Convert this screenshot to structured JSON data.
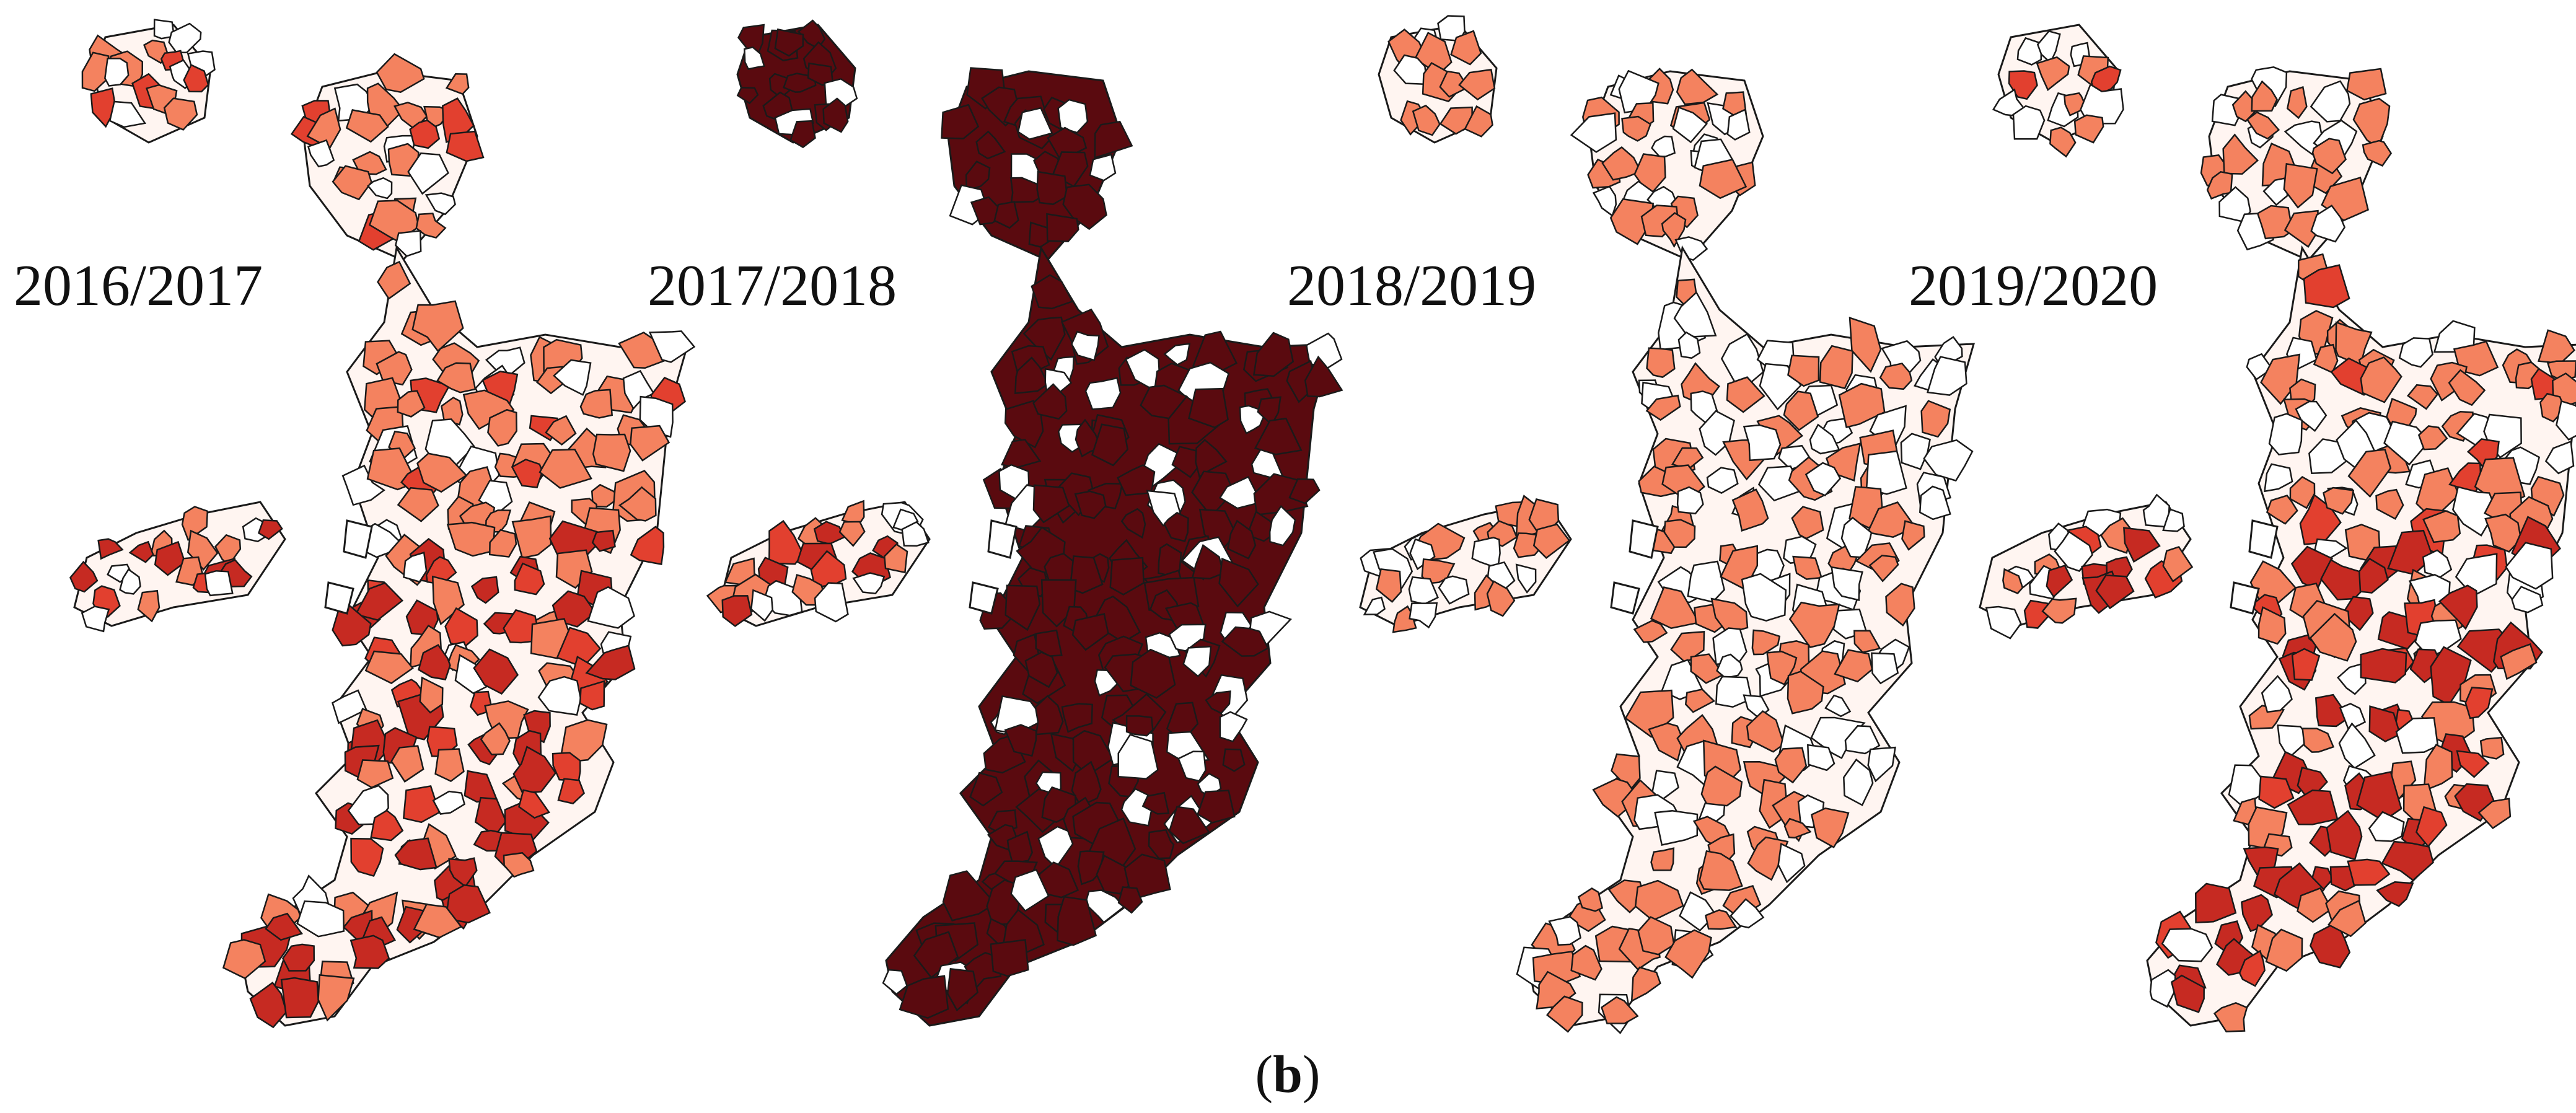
{
  "figure": {
    "caption_open": "(",
    "caption_letter": "b",
    "caption_close": ")",
    "panels": [
      {
        "label": "2016/2017",
        "scheme": "mixed"
      },
      {
        "label": "2017/2018",
        "scheme": "dark"
      },
      {
        "label": "2018/2019",
        "scheme": "light"
      },
      {
        "label": "2019/2020",
        "scheme": "mixed"
      }
    ]
  },
  "palette": {
    "outline": "#1a1a1a",
    "none": "#ffffff",
    "light": "#f4825f",
    "medium": "#e2402f",
    "strong": "#c62a22",
    "dark": "#5a0a0f"
  }
}
